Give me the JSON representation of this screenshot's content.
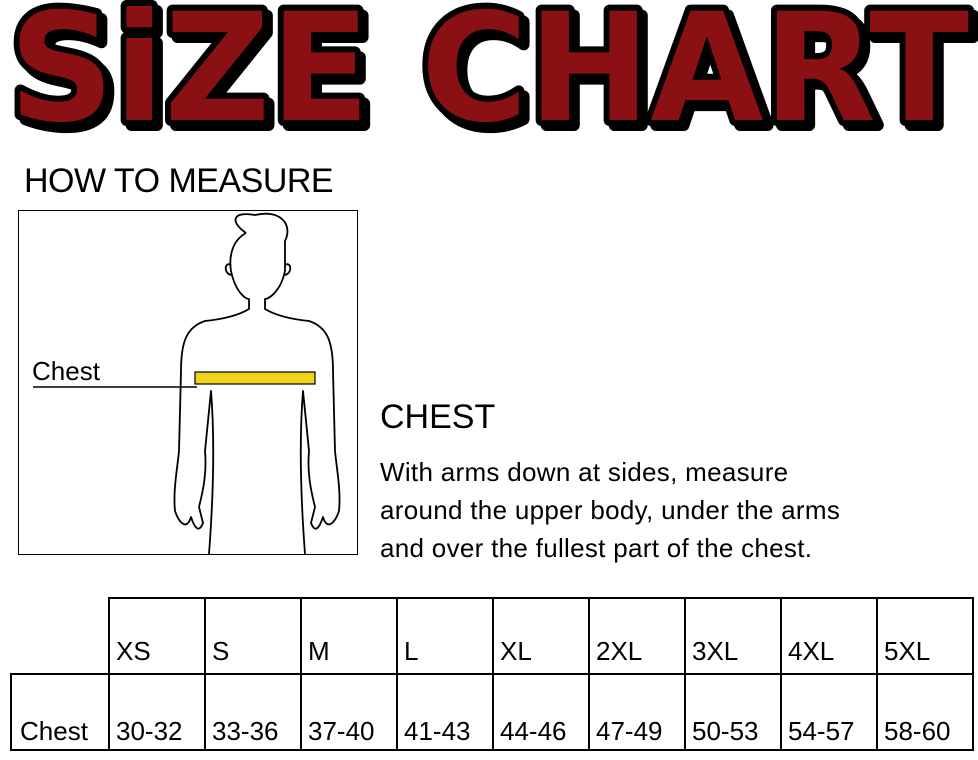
{
  "title": "SiZE CHART",
  "colors": {
    "title_fill": "#8b1014",
    "title_outline": "#000000",
    "tape": "#f2d21b"
  },
  "how_to_measure": "HOW TO MEASURE",
  "figure": {
    "label": "Chest",
    "icon": "male-body-outline-with-measuring-tape"
  },
  "instructions": {
    "heading": "CHEST",
    "lines": [
      "With arms down at sides, measure",
      "around the upper body, under the arms",
      "and over the fullest part of the chest."
    ]
  },
  "table": {
    "sizes": [
      "XS",
      "S",
      "M",
      "L",
      "XL",
      "2XL",
      "3XL",
      "4XL",
      "5XL"
    ],
    "rows": [
      {
        "label": "Chest",
        "values": [
          "30-32",
          "33-36",
          "37-40",
          "41-43",
          "44-46",
          "47-49",
          "50-53",
          "54-57",
          "58-60"
        ]
      }
    ]
  }
}
